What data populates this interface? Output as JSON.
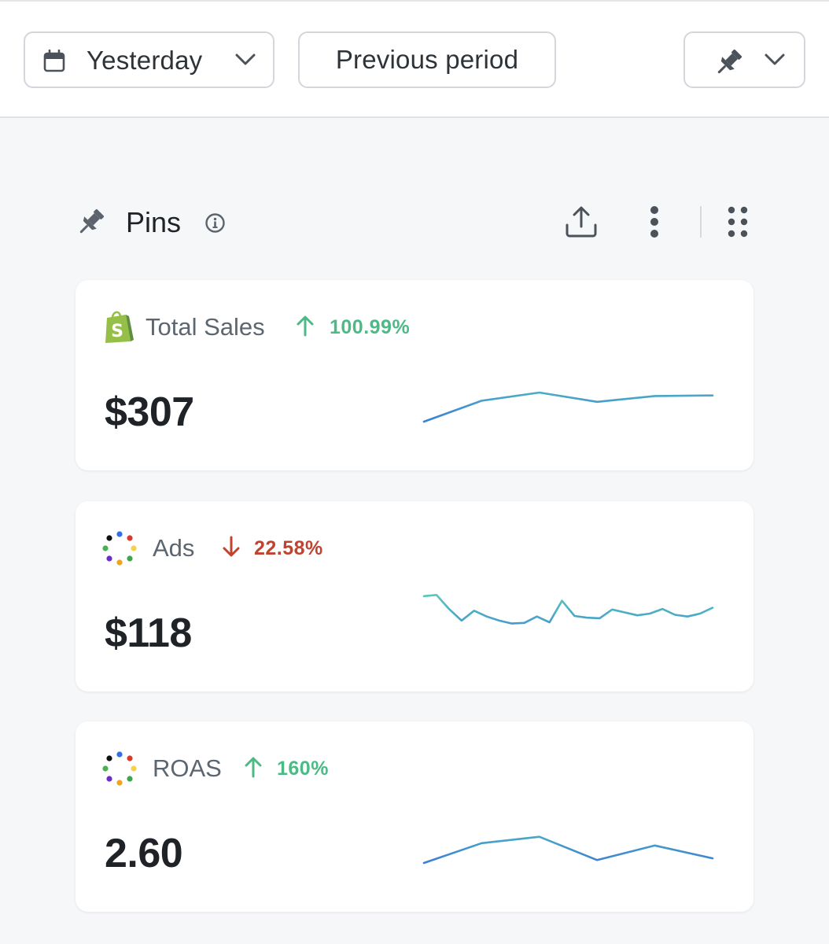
{
  "toolbar": {
    "date_range_label": "Yesterday",
    "compare_label": "Previous period"
  },
  "section": {
    "title": "Pins"
  },
  "colors": {
    "up": "#4dba86",
    "down": "#c0432f",
    "spark_start": "#3b7fd6",
    "spark_end": "#5fe0b0"
  },
  "cards": [
    {
      "title": "Total Sales",
      "logo": "shopify-bag-icon",
      "trend": "up",
      "change": "100.99%",
      "value": "$307",
      "sparkline": [
        0,
        0.36,
        0.5,
        0.34,
        0.44,
        0.45
      ]
    },
    {
      "title": "Ads",
      "logo": "multicolor-dots-icon",
      "trend": "down",
      "change": "22.58%",
      "value": "$118",
      "sparkline": [
        0.8,
        0.82,
        0.58,
        0.38,
        0.55,
        0.45,
        0.38,
        0.33,
        0.34,
        0.45,
        0.35,
        0.72,
        0.46,
        0.43,
        0.42,
        0.57,
        0.52,
        0.47,
        0.5,
        0.58,
        0.48,
        0.45,
        0.5,
        0.6
      ]
    },
    {
      "title": "ROAS",
      "logo": "multicolor-dots-icon",
      "trend": "up",
      "change": "160%",
      "value": "2.60",
      "sparkline": [
        0,
        0.34,
        0.45,
        0.05,
        0.3,
        0.08
      ]
    }
  ]
}
